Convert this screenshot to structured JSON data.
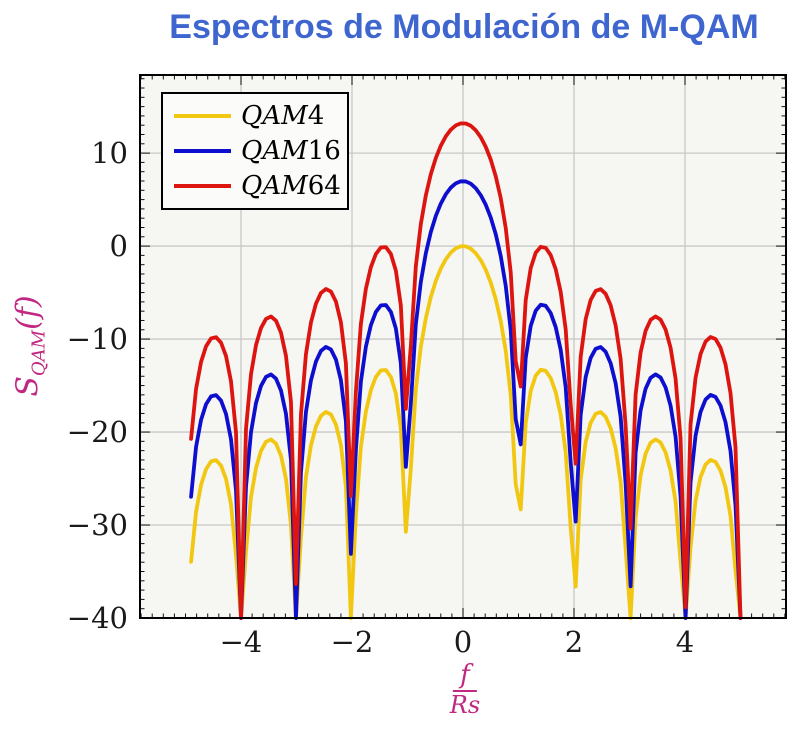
{
  "chart_data": {
    "type": "line",
    "title": "Espectros de Modulación de M-QAM",
    "ylabel": {
      "base": "S",
      "sub": "QAM",
      "suffix": "(f)"
    },
    "xlabel": {
      "numerator": "f",
      "denominator": "Rs"
    },
    "xlim": [
      -5.82,
      5.82
    ],
    "ylim": [
      -40,
      18.4
    ],
    "x_ticks": [
      -4,
      -2,
      0,
      2,
      4
    ],
    "y_ticks": [
      10,
      0,
      -10,
      -20,
      -30,
      -40
    ],
    "x_minor_step": 0.2,
    "y_minor_step": 1,
    "grid": true,
    "legend_position": "top-left",
    "domain": [
      -4.9,
      5.0
    ],
    "sample_step": 0.09,
    "clip_db": -40,
    "formula": "y(f) = peak_db + 20*log10(|sin(pi*f)/(pi*f)|)",
    "series": [
      {
        "name": "QAM4",
        "color": "#f2c712",
        "peak_db": 0
      },
      {
        "name": "QAM16",
        "color": "#0e0ecf",
        "peak_db": 6.99
      },
      {
        "name": "QAM64",
        "color": "#dd1510",
        "peak_db": 13.22
      }
    ],
    "colors": {
      "title": "#3f66cf",
      "axis_label": "#c02881",
      "tick_label": "#1a1a1a",
      "grid": "#c8c8c8",
      "frame": "#000000",
      "plot_bg": "#f6f6f3",
      "legend_bg": "#fbfbf9"
    }
  }
}
